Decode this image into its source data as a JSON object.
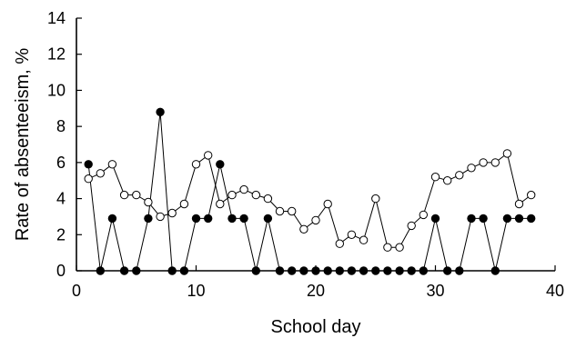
{
  "chart_data": {
    "type": "line",
    "title": "",
    "xlabel": "School day",
    "ylabel": "Rate of absenteeism, %",
    "xlim": [
      0,
      40
    ],
    "ylim": [
      0,
      14
    ],
    "xticks": [
      0,
      10,
      20,
      30,
      40
    ],
    "yticks": [
      0,
      2,
      4,
      6,
      8,
      10,
      12,
      14
    ],
    "grid": false,
    "legend": "none",
    "series": [
      {
        "marker": "open-circle",
        "color": "#000000",
        "x": [
          1,
          2,
          3,
          4,
          5,
          6,
          7,
          8,
          9,
          10,
          11,
          12,
          13,
          14,
          15,
          16,
          17,
          18,
          19,
          20,
          21,
          22,
          23,
          24,
          25,
          26,
          27,
          28,
          29,
          30,
          31,
          32,
          33,
          34,
          35,
          36,
          37,
          38
        ],
        "values": [
          5.1,
          5.4,
          5.9,
          4.2,
          4.2,
          3.8,
          3.0,
          3.2,
          3.7,
          5.9,
          6.4,
          3.7,
          4.2,
          4.5,
          4.2,
          4.0,
          3.3,
          3.3,
          2.3,
          2.8,
          3.7,
          1.5,
          2.0,
          1.7,
          4.0,
          1.3,
          1.3,
          2.5,
          3.1,
          5.2,
          5.0,
          5.3,
          5.7,
          6.0,
          6.0,
          6.5,
          3.7,
          4.2
        ]
      },
      {
        "marker": "filled-circle",
        "color": "#000000",
        "x": [
          1,
          2,
          3,
          4,
          5,
          6,
          7,
          8,
          9,
          10,
          11,
          12,
          13,
          14,
          15,
          16,
          17,
          18,
          19,
          20,
          21,
          22,
          23,
          24,
          25,
          26,
          27,
          28,
          29,
          30,
          31,
          32,
          33,
          34,
          35,
          36,
          37,
          38
        ],
        "values": [
          5.9,
          0,
          2.9,
          0,
          0,
          2.9,
          8.8,
          0,
          0,
          2.9,
          2.9,
          5.9,
          2.9,
          2.9,
          0,
          2.9,
          0,
          0,
          0,
          0,
          0,
          0,
          0,
          0,
          0,
          0,
          0,
          0,
          0,
          2.9,
          0,
          0,
          2.9,
          2.9,
          0,
          2.9,
          2.9,
          2.9
        ]
      }
    ]
  }
}
